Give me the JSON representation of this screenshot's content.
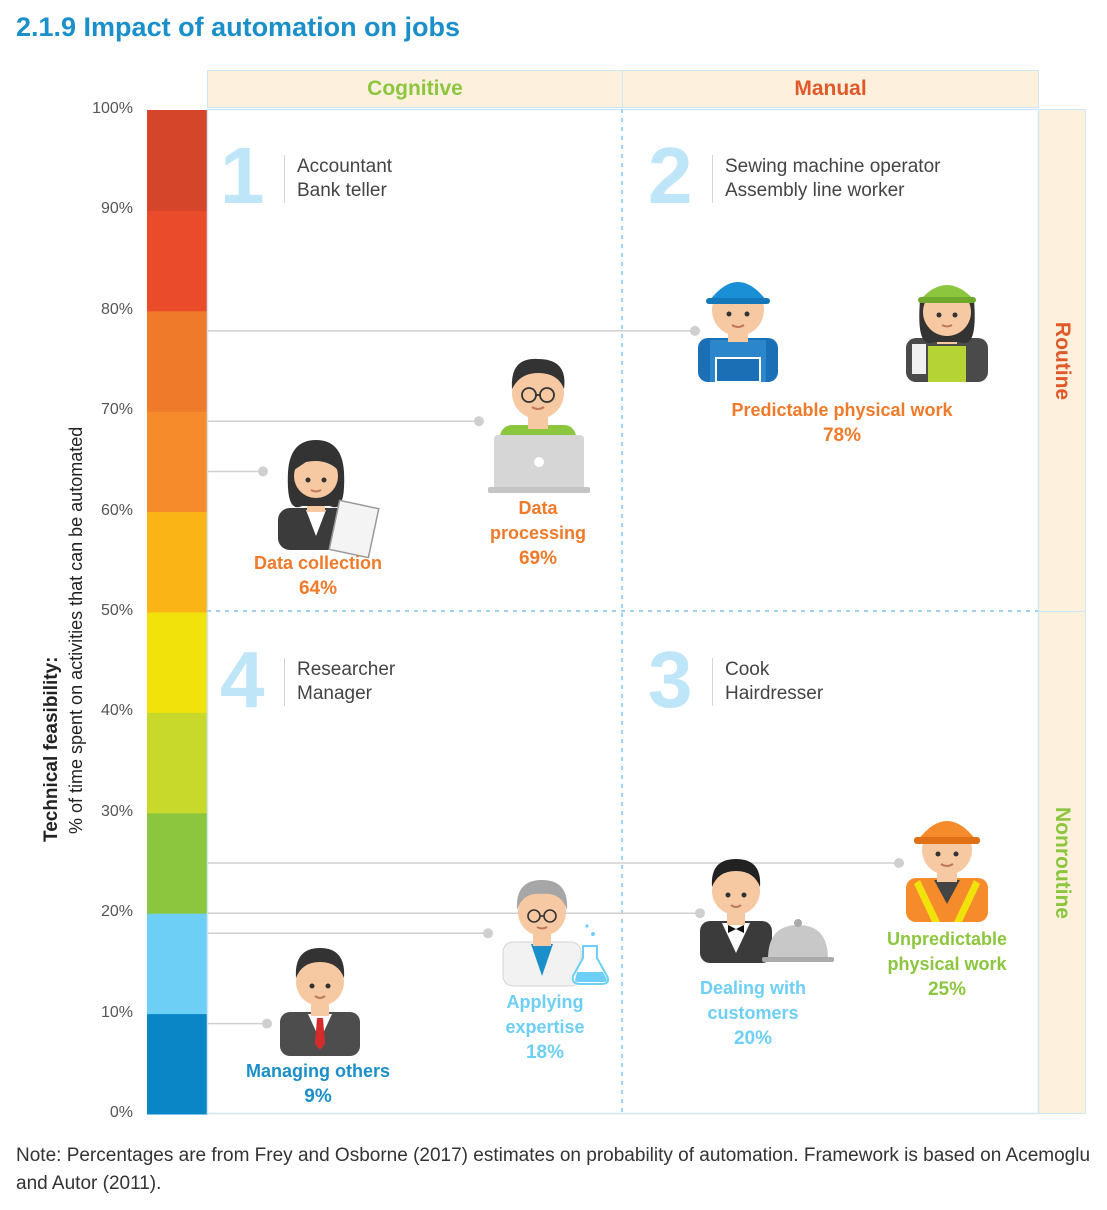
{
  "title": "2.1.9  Impact of automation on jobs",
  "y_axis": {
    "label_line1": "Technical feasibility:",
    "label_line2": "% of time spent on activities that can be automated",
    "ticks": [
      "0%",
      "10%",
      "20%",
      "30%",
      "40%",
      "50%",
      "60%",
      "70%",
      "80%",
      "90%",
      "100%"
    ]
  },
  "scale_colors": [
    "#0a86c7",
    "#6dcff6",
    "#8cc63f",
    "#c9d92b",
    "#f1e20c",
    "#fbb416",
    "#f58b2a",
    "#ef7a2a",
    "#ea4c2b",
    "#d4452a"
  ],
  "columns": [
    {
      "label": "Cognitive",
      "color": "#8cc63f"
    },
    {
      "label": "Manual",
      "color": "#e0592a"
    }
  ],
  "rows": [
    {
      "label": "Routine",
      "color": "#e0592a"
    },
    {
      "label": "Nonroutine",
      "color": "#8cc63f"
    }
  ],
  "quadrants": [
    {
      "number": "1",
      "jobs": [
        "Accountant",
        "Bank teller"
      ]
    },
    {
      "number": "2",
      "jobs": [
        "Sewing machine operator",
        "Assembly line worker"
      ]
    },
    {
      "number": "3",
      "jobs": [
        "Cook",
        "Hairdresser"
      ]
    },
    {
      "number": "4",
      "jobs": [
        "Researcher",
        "Manager"
      ]
    }
  ],
  "activities": [
    {
      "label_lines": [
        "Predictable physical work"
      ],
      "percent": "78%",
      "value": 78,
      "color": "#ef7a2a"
    },
    {
      "label_lines": [
        "Data",
        "processing"
      ],
      "percent": "69%",
      "value": 69,
      "color": "#ef7a2a"
    },
    {
      "label_lines": [
        "Data collection"
      ],
      "percent": "64%",
      "value": 64,
      "color": "#ef7a2a"
    },
    {
      "label_lines": [
        "Unpredictable",
        "physical work"
      ],
      "percent": "25%",
      "value": 25,
      "color": "#8cc63f"
    },
    {
      "label_lines": [
        "Dealing with",
        "customers"
      ],
      "percent": "20%",
      "value": 20,
      "color": "#6dcff6"
    },
    {
      "label_lines": [
        "Applying",
        "expertise"
      ],
      "percent": "18%",
      "value": 18,
      "color": "#6dcff6"
    },
    {
      "label_lines": [
        "Managing others"
      ],
      "percent": "9%",
      "value": 9,
      "color": "#1a8fc9"
    }
  ],
  "note": "Note: Percentages are from Frey and Osborne (2017) estimates on probability of automation. Framework is based on Acemoglu and Autor (2011).",
  "icons": [
    "construction-worker-icon",
    "factory-worker-icon",
    "data-processor-icon",
    "office-worker-icon",
    "hardhat-worker-icon",
    "waiter-icon",
    "scientist-icon",
    "manager-icon"
  ]
}
